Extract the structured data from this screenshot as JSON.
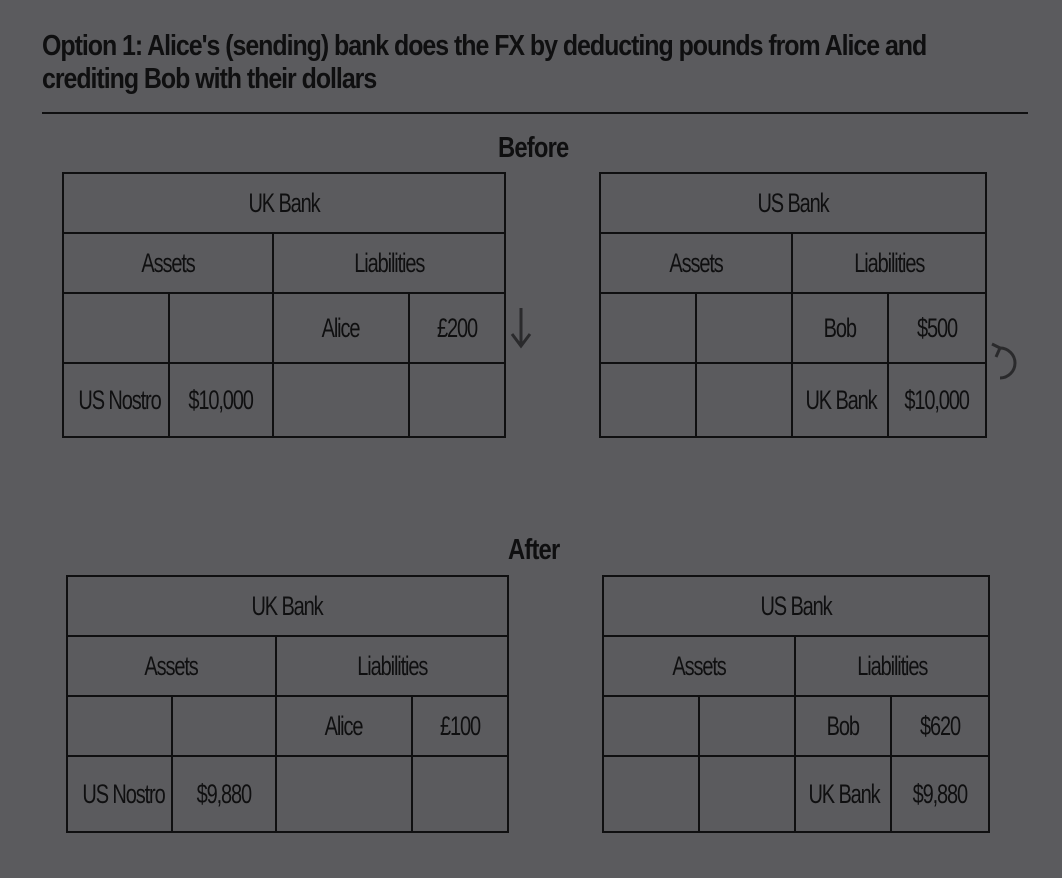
{
  "title": {
    "line1": "Option 1: Alice's (sending) bank does the FX by deducting pounds from Alice and",
    "line2": "crediting Bob with their dollars"
  },
  "before": {
    "label": "Before",
    "uk_bank": {
      "name": "UK Bank",
      "assets_label": "Assets",
      "liabilities_label": "Liabilities",
      "rows": [
        {
          "asset_name": "",
          "asset_value": "",
          "liability_name": "Alice",
          "liability_value": "£200"
        },
        {
          "asset_name": "US Nostro",
          "asset_value": "$10,000",
          "liability_name": "",
          "liability_value": ""
        }
      ]
    },
    "us_bank": {
      "name": "US Bank",
      "assets_label": "Assets",
      "liabilities_label": "Liabilities",
      "rows": [
        {
          "asset_name": "",
          "asset_value": "",
          "liability_name": "Bob",
          "liability_value": "$500"
        },
        {
          "asset_name": "",
          "asset_value": "",
          "liability_name": "UK Bank",
          "liability_value": "$10,000"
        }
      ]
    }
  },
  "after": {
    "label": "After",
    "uk_bank": {
      "name": "UK Bank",
      "assets_label": "Assets",
      "liabilities_label": "Liabilities",
      "rows": [
        {
          "asset_name": "",
          "asset_value": "",
          "liability_name": "Alice",
          "liability_value": "£100"
        },
        {
          "asset_name": "US Nostro",
          "asset_value": "$9,880",
          "liability_name": "",
          "liability_value": ""
        }
      ]
    },
    "us_bank": {
      "name": "US Bank",
      "assets_label": "Assets",
      "liabilities_label": "Liabilities",
      "rows": [
        {
          "asset_name": "",
          "asset_value": "",
          "liability_name": "Bob",
          "liability_value": "$620"
        },
        {
          "asset_name": "",
          "asset_value": "",
          "liability_name": "UK Bank",
          "liability_value": "$9,880"
        }
      ]
    }
  },
  "icons": {
    "decrease": "down-arrow-icon",
    "increase": "counterclockwise-arrow-icon"
  },
  "colors": {
    "background": "#5b5b5e",
    "ink": "#0f0f10",
    "arrow": "#2a2a2c"
  }
}
